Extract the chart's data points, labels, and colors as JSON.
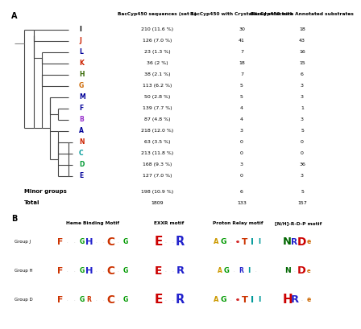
{
  "title_A": "A",
  "title_B": "B",
  "col_headers": [
    "BacCyp450 sequences (set 1)",
    "BacCyp450 with Crystallized structure",
    "BacCyp450 with Annotated substrates"
  ],
  "groups": [
    "I",
    "J",
    "L",
    "K",
    "H",
    "G",
    "M",
    "F",
    "B",
    "A",
    "N",
    "C",
    "D",
    "E"
  ],
  "group_colors": {
    "I": "#000000",
    "J": "#cc2200",
    "L": "#000099",
    "K": "#cc2200",
    "H": "#336600",
    "G": "#cc6600",
    "M": "#000099",
    "F": "#000099",
    "B": "#9933cc",
    "A": "#000099",
    "N": "#cc2200",
    "C": "#009999",
    "D": "#009933",
    "E": "#000099"
  },
  "col1": [
    "210 (11.6 %)",
    "126 (7.0 %)",
    "23 (1.3 %)",
    "36 (2 %)",
    "38 (2.1 %)",
    "113 (6.2 %)",
    "50 (2.8 %)",
    "139 (7.7 %)",
    "87 (4.8 %)",
    "218 (12.0 %)",
    "63 (3.5 %)",
    "213 (11.8 %)",
    "168 (9.3 %)",
    "127 (7.0 %)"
  ],
  "col2": [
    "30",
    "41",
    "7",
    "18",
    "7",
    "5",
    "5",
    "4",
    "4",
    "3",
    "0",
    "0",
    "3",
    "0"
  ],
  "col3": [
    "18",
    "43",
    "16",
    "15",
    "6",
    "3",
    "3",
    "1",
    "3",
    "5",
    "0",
    "0",
    "36",
    "3"
  ],
  "minor_col1": "198 (10.9 %)",
  "minor_col2": "6",
  "minor_col3": "5",
  "total_col1": "1809",
  "total_col2": "133",
  "total_col3": "157",
  "motif_headers": [
    "Heme Binding Motif",
    "EXXR motif",
    "Proton Relay motif",
    "[N/H]-R-D-P motif"
  ],
  "motif_groups": [
    "Group J",
    "Group H",
    "Group D"
  ]
}
